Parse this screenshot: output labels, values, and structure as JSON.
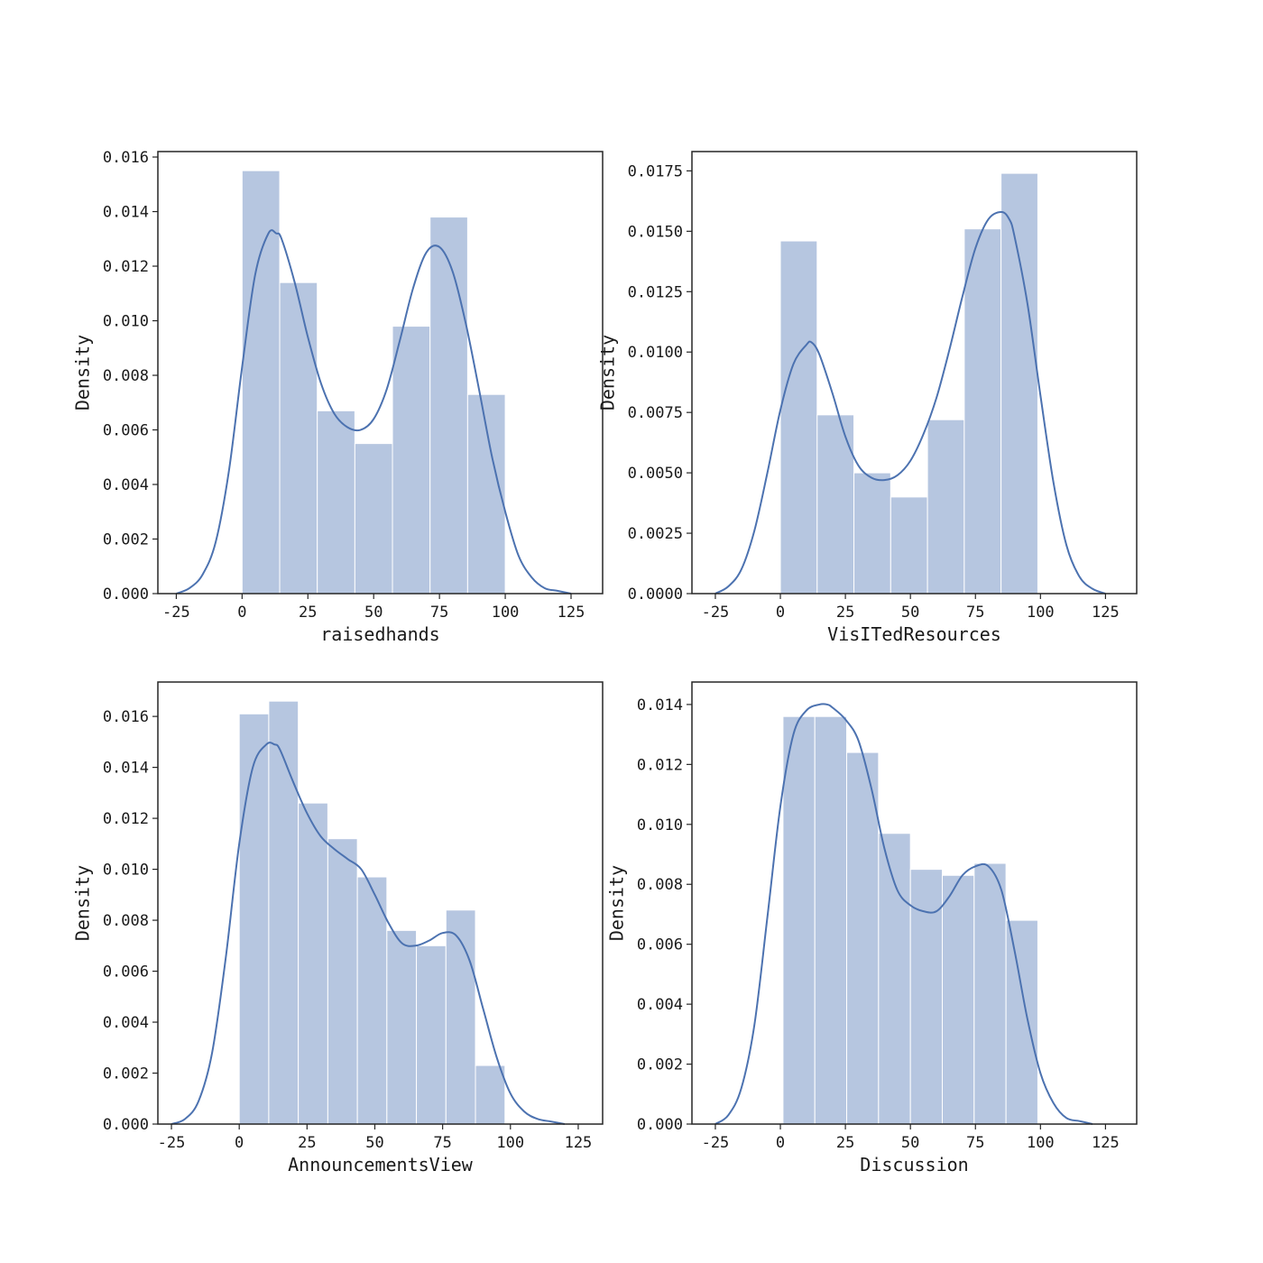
{
  "chart_data": [
    {
      "type": "histogram",
      "xlabel": "raisedhands",
      "ylabel": "Density",
      "xlim": [
        -32,
        137
      ],
      "ylim": [
        0,
        0.0162
      ],
      "xticks": [
        -25,
        0,
        25,
        50,
        75,
        100,
        125
      ],
      "yticks": [
        0.0,
        0.002,
        0.004,
        0.006,
        0.008,
        0.01,
        0.012,
        0.014,
        0.016
      ],
      "ytick_labels": [
        "0.000",
        "0.002",
        "0.004",
        "0.006",
        "0.008",
        "0.010",
        "0.012",
        "0.014",
        "0.016"
      ],
      "bin_edges": [
        0,
        14.29,
        28.57,
        42.86,
        57.14,
        71.43,
        85.71,
        100
      ],
      "bin_densities": [
        0.0155,
        0.0114,
        0.0067,
        0.0055,
        0.0098,
        0.0138,
        0.0073
      ],
      "kde_line": {
        "x": [
          -25,
          -20,
          -15,
          -10,
          -5,
          0,
          5,
          10,
          13,
          15,
          20,
          25,
          30,
          35,
          40,
          45,
          50,
          55,
          60,
          65,
          70,
          75,
          80,
          85,
          90,
          95,
          100,
          105,
          110,
          115,
          120,
          125
        ],
        "y": [
          0.0,
          0.0002,
          0.0007,
          0.0019,
          0.0045,
          0.0083,
          0.0117,
          0.0132,
          0.0132,
          0.013,
          0.0114,
          0.0094,
          0.0077,
          0.0066,
          0.0061,
          0.006,
          0.0064,
          0.0075,
          0.0093,
          0.0112,
          0.0125,
          0.0127,
          0.0118,
          0.0099,
          0.0075,
          0.005,
          0.003,
          0.0014,
          0.0006,
          0.0002,
          0.0001,
          0.0
        ]
      }
    },
    {
      "type": "histogram",
      "xlabel": "VisITedResources",
      "ylabel": "Density",
      "xlim": [
        -34,
        137
      ],
      "ylim": [
        0,
        0.0183
      ],
      "xticks": [
        -25,
        0,
        25,
        50,
        75,
        100,
        125
      ],
      "yticks": [
        0.0,
        0.0025,
        0.005,
        0.0075,
        0.01,
        0.0125,
        0.015,
        0.0175
      ],
      "ytick_labels": [
        "0.0000",
        "0.0025",
        "0.0050",
        "0.0075",
        "0.0100",
        "0.0125",
        "0.0150",
        "0.0175"
      ],
      "bin_edges": [
        0,
        14.14,
        28.28,
        42.42,
        56.56,
        70.7,
        84.84,
        99
      ],
      "bin_densities": [
        0.0146,
        0.0074,
        0.005,
        0.004,
        0.0072,
        0.0151,
        0.0174
      ],
      "kde_line": {
        "x": [
          -25,
          -20,
          -15,
          -10,
          -5,
          0,
          5,
          10,
          12,
          15,
          20,
          25,
          30,
          35,
          40,
          45,
          50,
          55,
          60,
          65,
          70,
          75,
          80,
          85,
          88,
          90,
          95,
          100,
          105,
          110,
          115,
          120,
          125
        ],
        "y": [
          0.0,
          0.0003,
          0.001,
          0.0026,
          0.005,
          0.0076,
          0.0095,
          0.0103,
          0.0104,
          0.0099,
          0.0083,
          0.0065,
          0.0053,
          0.0048,
          0.0047,
          0.0049,
          0.0055,
          0.0066,
          0.0081,
          0.0101,
          0.0123,
          0.0143,
          0.0155,
          0.0158,
          0.0155,
          0.0148,
          0.012,
          0.0082,
          0.0046,
          0.002,
          0.0007,
          0.0002,
          0.0
        ]
      }
    },
    {
      "type": "histogram",
      "xlabel": "AnnouncementsView",
      "ylabel": "Density",
      "xlim": [
        -30,
        134
      ],
      "ylim": [
        0,
        0.01735
      ],
      "xticks": [
        -25,
        0,
        25,
        50,
        75,
        100,
        125
      ],
      "yticks": [
        0.0,
        0.002,
        0.004,
        0.006,
        0.008,
        0.01,
        0.012,
        0.014,
        0.016
      ],
      "ytick_labels": [
        "0.000",
        "0.002",
        "0.004",
        "0.006",
        "0.008",
        "0.010",
        "0.012",
        "0.014",
        "0.016"
      ],
      "bin_edges": [
        0,
        10.89,
        21.78,
        32.67,
        43.56,
        54.44,
        65.33,
        76.22,
        87.11,
        98
      ],
      "bin_densities": [
        0.0161,
        0.0166,
        0.0126,
        0.0112,
        0.0097,
        0.0076,
        0.007,
        0.0084,
        0.0023
      ],
      "kde_line": {
        "x": [
          -25,
          -20,
          -15,
          -10,
          -5,
          0,
          5,
          10,
          13,
          15,
          20,
          25,
          30,
          35,
          40,
          45,
          50,
          55,
          60,
          65,
          70,
          75,
          80,
          85,
          90,
          95,
          100,
          105,
          110,
          115,
          120
        ],
        "y": [
          0.0,
          0.0002,
          0.0009,
          0.0028,
          0.0065,
          0.011,
          0.014,
          0.0149,
          0.0149,
          0.0147,
          0.0134,
          0.0122,
          0.0113,
          0.0108,
          0.0104,
          0.01,
          0.009,
          0.0079,
          0.0071,
          0.007,
          0.0072,
          0.0075,
          0.0074,
          0.0064,
          0.0045,
          0.0026,
          0.0012,
          0.0005,
          0.0002,
          0.0001,
          0.0
        ]
      }
    },
    {
      "type": "histogram",
      "xlabel": "Discussion",
      "ylabel": "Density",
      "xlim": [
        -34,
        137
      ],
      "ylim": [
        0,
        0.01475
      ],
      "xticks": [
        -25,
        0,
        25,
        50,
        75,
        100,
        125
      ],
      "yticks": [
        0.0,
        0.002,
        0.004,
        0.006,
        0.008,
        0.01,
        0.012,
        0.014
      ],
      "ytick_labels": [
        "0.000",
        "0.002",
        "0.004",
        "0.006",
        "0.008",
        "0.010",
        "0.012",
        "0.014"
      ],
      "bin_edges": [
        1,
        13.25,
        25.5,
        37.75,
        50,
        62.25,
        74.5,
        86.75,
        99
      ],
      "bin_densities": [
        0.0136,
        0.0136,
        0.0124,
        0.0097,
        0.0085,
        0.0083,
        0.0087,
        0.0068
      ],
      "kde_line": {
        "x": [
          -25,
          -20,
          -15,
          -10,
          -5,
          0,
          5,
          10,
          15,
          18,
          20,
          25,
          30,
          35,
          40,
          45,
          50,
          55,
          60,
          65,
          70,
          75,
          80,
          85,
          90,
          95,
          100,
          105,
          110,
          115,
          120
        ],
        "y": [
          0.0,
          0.0003,
          0.0012,
          0.0033,
          0.0069,
          0.0106,
          0.013,
          0.0138,
          0.014,
          0.014,
          0.0139,
          0.0135,
          0.0128,
          0.0112,
          0.0092,
          0.0078,
          0.0073,
          0.0071,
          0.0071,
          0.0076,
          0.0083,
          0.0086,
          0.0086,
          0.0078,
          0.0058,
          0.0035,
          0.0017,
          0.0007,
          0.0002,
          0.0001,
          0.0
        ]
      }
    }
  ]
}
